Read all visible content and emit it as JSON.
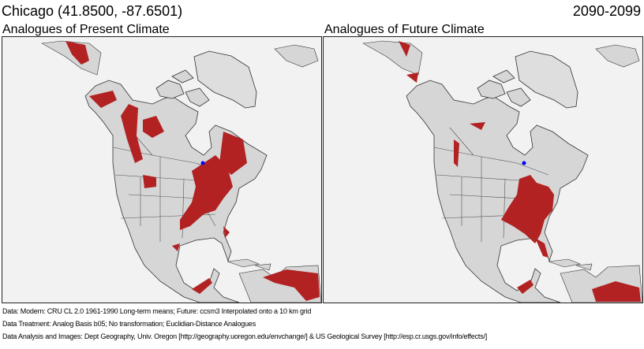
{
  "header": {
    "location": "Chicago  (41.8500, -87.6501)",
    "period": "2090-2099"
  },
  "panels": [
    {
      "title": "Analogues of Present Climate"
    },
    {
      "title": "Analogues of Future Climate"
    }
  ],
  "footer": [
    "Data:  Modern: CRU CL 2.0 1961-1990 Long-term means; Future: ccsm3 Interpolated onto a 10 km grid",
    "Data Treatment:  Analog Basis b05; No transformation; Euclidian-Distance Analogues",
    "Data Analysis and Images:  Dept Geography, Univ. Oregon [http://geography.uoregon.edu/envchange/] & US Geological Survey [http://esp.cr.usgs.gov/info/effects/]"
  ],
  "colors": {
    "analogue": "#b22222",
    "land": "#d6d6d6",
    "ocean": "#f2f2f2",
    "site_marker": "#0000ff"
  }
}
